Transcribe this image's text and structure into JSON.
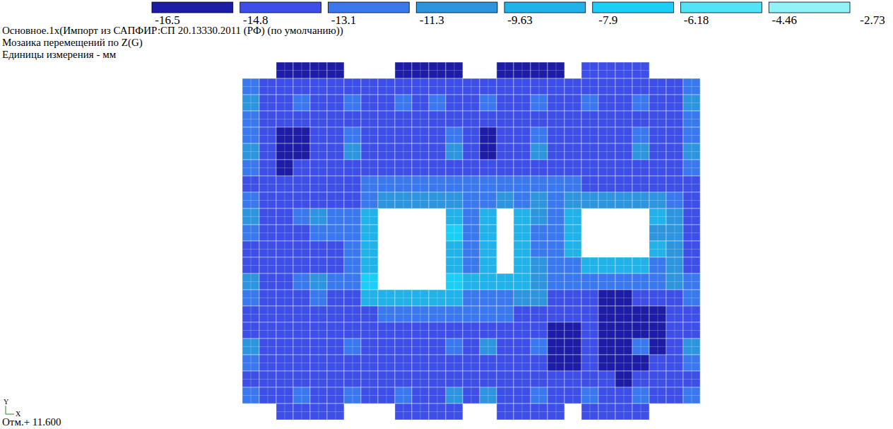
{
  "chart_data": {
    "type": "heatmap",
    "title": "Основное.1х(Импорт из САПФИР:СП 20.13330.2011 (РФ) (по умолчанию))",
    "subtitle": "Мозаика перемещений по Z(G)",
    "annotations": [
      "Единицы измерения - мм",
      "Отм.+ 11.600"
    ],
    "xlabel": "X",
    "ylabel": "Y",
    "colorbar": {
      "ticks": [
        -16.5,
        -14.8,
        -13.1,
        -11.3,
        -9.63,
        -7.9,
        -6.18,
        -4.46,
        -2.73
      ],
      "colors": [
        "#1c1ca4",
        "#3d4fe6",
        "#3a78ee",
        "#2c95de",
        "#20b2e8",
        "#1ccdf5",
        "#52e3f7",
        "#90f3f7"
      ]
    },
    "cells": [
      [
        null,
        null,
        -15.8,
        -15.8,
        -15.8,
        -15.8,
        null,
        null,
        null,
        -15.8,
        -15.8,
        -15.8,
        -15.8,
        null,
        null,
        -15.8,
        -15.8,
        -15.8,
        -15.8,
        null,
        -14,
        -14,
        -14,
        -14,
        null,
        null,
        null
      ],
      [
        -12,
        -14,
        -14,
        -14,
        -14,
        -14,
        -14,
        -14,
        -14,
        -14,
        -14,
        -14,
        -14,
        -14,
        -14,
        -14,
        -14,
        -14,
        -14,
        -14,
        -14,
        -14,
        -14,
        -14,
        -14,
        -14,
        -12
      ],
      [
        -10.5,
        -14,
        -14,
        -12,
        -14,
        -14,
        -12,
        -14,
        -14,
        -12,
        -14,
        -12,
        -14,
        -14,
        -12,
        -14,
        -14,
        -12,
        -14,
        -14,
        -12,
        -14,
        -14,
        -12,
        -14,
        -14,
        -10.5
      ],
      [
        -12,
        -14,
        -14,
        -14,
        -14,
        -14,
        -14,
        -14,
        -14,
        -14,
        -14,
        -14,
        -14,
        -14,
        -14,
        -14,
        -14,
        -14,
        -14,
        -14,
        -14,
        -14,
        -14,
        -14,
        -14,
        -14,
        -12
      ],
      [
        -12,
        -14,
        -15.8,
        -15.8,
        -14,
        -14,
        -12,
        -14,
        -14,
        -14,
        -14,
        -14,
        -12,
        -14,
        -15.8,
        -14,
        -14,
        -12,
        -14,
        -14,
        -14,
        -14,
        -14,
        -12,
        -14,
        -14,
        -12
      ],
      [
        -10.5,
        -14,
        -15.8,
        -15.8,
        -14,
        -14,
        -10.5,
        -14,
        -14,
        -14,
        -14,
        -14,
        -10.5,
        -14,
        -15.8,
        -14,
        -14,
        -10.5,
        -14,
        -14,
        -14,
        -14,
        -14,
        -10.5,
        -14,
        -14,
        -10.5
      ],
      [
        -12,
        -14,
        -15.8,
        -14,
        -14,
        -14,
        -14,
        -14,
        -14,
        -14,
        -14,
        -14,
        -14,
        -14,
        -14,
        -14,
        -14,
        -14,
        -14,
        -14,
        -14,
        -14,
        -14,
        -14,
        -14,
        -14,
        -12
      ],
      [
        -14,
        -14,
        -14,
        -14,
        -14,
        -14,
        -14,
        -12,
        -12,
        -12,
        -12,
        -12,
        -12,
        -12,
        -12,
        -12,
        -12,
        -12,
        -12,
        -12,
        -14,
        -14,
        -14,
        -14,
        -14,
        -14,
        -14
      ],
      [
        -12,
        -14,
        -14,
        -14,
        -14,
        -14,
        -14,
        -12,
        -10.5,
        -10.5,
        -10.5,
        -10.5,
        -10.5,
        -12,
        -12,
        -10.5,
        -12,
        -10.5,
        -12,
        -10.5,
        -10.5,
        -10.5,
        -10.5,
        -10.5,
        -10.5,
        -12,
        -14
      ],
      [
        -10.5,
        -14,
        -14,
        -12,
        -10.5,
        -12,
        -12,
        -8.8,
        null,
        null,
        null,
        null,
        -8.8,
        -12,
        -8.8,
        null,
        -8.8,
        -10.5,
        -12,
        -8.8,
        null,
        null,
        null,
        null,
        -8.8,
        -10.5,
        -14
      ],
      [
        -12,
        -14,
        -14,
        -14,
        -12,
        -12,
        -12,
        -8.8,
        null,
        null,
        null,
        null,
        -7,
        -12,
        -8.8,
        null,
        -8.8,
        -12,
        -12,
        -8.8,
        null,
        null,
        null,
        null,
        -10.5,
        -10.5,
        -14
      ],
      [
        -14,
        -14,
        -14,
        -14,
        -14,
        -14,
        -12,
        -8.8,
        null,
        null,
        null,
        null,
        -8.8,
        -12,
        -8.8,
        null,
        -8.8,
        -12,
        -12,
        -8.8,
        null,
        null,
        null,
        null,
        -8.8,
        -10.5,
        -14
      ],
      [
        -14,
        -14,
        -14,
        -14,
        -14,
        -14,
        -12,
        -8.8,
        null,
        null,
        null,
        null,
        -8.8,
        -12,
        -8.8,
        null,
        -8.8,
        -10.5,
        -12,
        -12,
        -8.8,
        -8.8,
        -8.8,
        -8.8,
        -12,
        -10.5,
        -14
      ],
      [
        -10.5,
        -14,
        -14,
        -12,
        -10.5,
        -12,
        -12,
        -7,
        null,
        null,
        null,
        null,
        -7,
        -8.8,
        -8.8,
        -8.8,
        -8.8,
        -10.5,
        -12,
        -12,
        -12,
        -12,
        -12,
        -12,
        -12,
        -10.5,
        -12
      ],
      [
        -12,
        -14,
        -14,
        -14,
        -12,
        -14,
        -14,
        -8.8,
        -8.8,
        -8.8,
        -8.8,
        -8.8,
        -8.8,
        -12,
        -12,
        -12,
        -10.5,
        -10.5,
        -14,
        -14,
        -14,
        -15.8,
        -15.8,
        -14,
        -14,
        -14,
        -12
      ],
      [
        -14,
        -14,
        -14,
        -14,
        -14,
        -14,
        -14,
        -14,
        -12,
        -12,
        -12,
        -12,
        -12,
        -12,
        -12,
        -12,
        -14,
        -14,
        -14,
        -14,
        -14,
        -15.8,
        -15.8,
        -15.8,
        -15.8,
        -14,
        -14
      ],
      [
        -14,
        -14,
        -14,
        -14,
        -14,
        -14,
        -14,
        -14,
        -14,
        -14,
        -14,
        -14,
        -14,
        -14,
        -14,
        -14,
        -14,
        -14,
        -15.8,
        -15.8,
        -14,
        -15.8,
        -15.8,
        -15.8,
        -15.8,
        -14,
        -14
      ],
      [
        -10.5,
        -14,
        -14,
        -14,
        -14,
        -14,
        -12,
        -14,
        -14,
        -14,
        -14,
        -14,
        -12,
        -14,
        -10.5,
        -14,
        -14,
        -12,
        -15.8,
        -15.8,
        -14,
        -15.8,
        -15.8,
        -12,
        -15.8,
        -14,
        -10.5
      ],
      [
        -12,
        -14,
        -14,
        -14,
        -14,
        -14,
        -14,
        -14,
        -14,
        -14,
        -14,
        -14,
        -14,
        -14,
        -14,
        -14,
        -14,
        -14,
        -15.8,
        -15.8,
        -14,
        -15.8,
        -15.8,
        -15.8,
        -14,
        -14,
        -12
      ],
      [
        -14,
        -14,
        -14,
        -14,
        -14,
        -14,
        -14,
        -14,
        -14,
        -14,
        -14,
        -14,
        -14,
        -14,
        -14,
        -14,
        -14,
        -14,
        -14,
        -14,
        -14,
        -14,
        -15.8,
        -14,
        -14,
        -14,
        -14
      ],
      [
        -12,
        -14,
        -14,
        -12,
        -14,
        -14,
        -12,
        -14,
        -14,
        -12,
        -14,
        -14,
        -10.5,
        -14,
        -10.5,
        -14,
        -14,
        -12,
        -14,
        -14,
        -12,
        -14,
        -14,
        -12,
        -14,
        -14,
        -12
      ],
      [
        null,
        null,
        -14,
        -14,
        -14,
        -14,
        null,
        null,
        null,
        -14,
        -14,
        -14,
        -14,
        null,
        null,
        -14,
        -14,
        -14,
        -14,
        null,
        -14,
        -14,
        -14,
        -14,
        null,
        null,
        null
      ]
    ]
  }
}
